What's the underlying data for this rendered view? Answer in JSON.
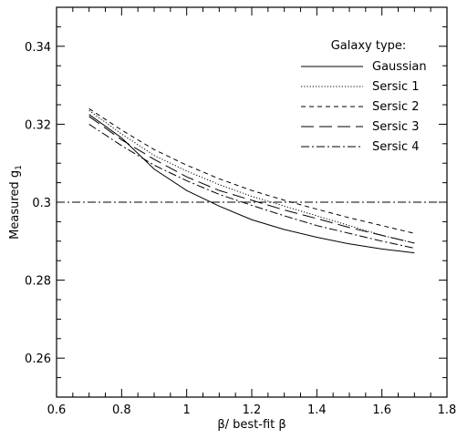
{
  "chart_data": {
    "type": "line",
    "xlabel": "β/ best-fit β",
    "ylabel": "Measured g",
    "ylabel_sub": "1",
    "xlim": [
      0.6,
      1.8
    ],
    "ylim": [
      0.25,
      0.35
    ],
    "x_ticks": [
      0.6,
      0.8,
      1,
      1.2,
      1.4,
      1.6,
      1.8
    ],
    "x_tick_labels": [
      "0.6",
      "0.8",
      "1",
      "1.2",
      "1.4",
      "1.6",
      "1.8"
    ],
    "y_ticks": [
      0.26,
      0.28,
      0.3,
      0.32,
      0.34
    ],
    "y_tick_labels": [
      "0.26",
      "0.28",
      "0.3",
      "0.32",
      "0.34"
    ],
    "grid": false,
    "legend_title": "Galaxy type:",
    "legend_position": "top-right",
    "x": [
      0.7,
      0.8,
      0.9,
      1.0,
      1.1,
      1.2,
      1.3,
      1.4,
      1.5,
      1.6,
      1.7
    ],
    "series": [
      {
        "name": "Gaussian",
        "dash": "solid",
        "values": [
          0.3225,
          0.3165,
          0.3085,
          0.303,
          0.299,
          0.2955,
          0.293,
          0.291,
          0.2893,
          0.288,
          0.287
        ]
      },
      {
        "name": "Sersic 1",
        "dash": "dotted",
        "values": [
          0.3235,
          0.3175,
          0.312,
          0.308,
          0.3045,
          0.3015,
          0.299,
          0.2965,
          0.294,
          0.2915,
          0.2895
        ]
      },
      {
        "name": "Sersic 2",
        "dash": "short-dash",
        "values": [
          0.324,
          0.3185,
          0.3135,
          0.3095,
          0.306,
          0.303,
          0.3005,
          0.2982,
          0.296,
          0.294,
          0.292
        ]
      },
      {
        "name": "Sersic 3",
        "dash": "long-dash",
        "values": [
          0.322,
          0.316,
          0.311,
          0.3065,
          0.303,
          0.3005,
          0.298,
          0.2958,
          0.2935,
          0.2915,
          0.2895
        ]
      },
      {
        "name": "Sersic 4",
        "dash": "dash-dot",
        "values": [
          0.32,
          0.3145,
          0.3095,
          0.3055,
          0.302,
          0.2992,
          0.2965,
          0.294,
          0.292,
          0.29,
          0.2882
        ]
      }
    ],
    "reference_line": {
      "y": 0.3,
      "dash": "dash-dot"
    }
  }
}
